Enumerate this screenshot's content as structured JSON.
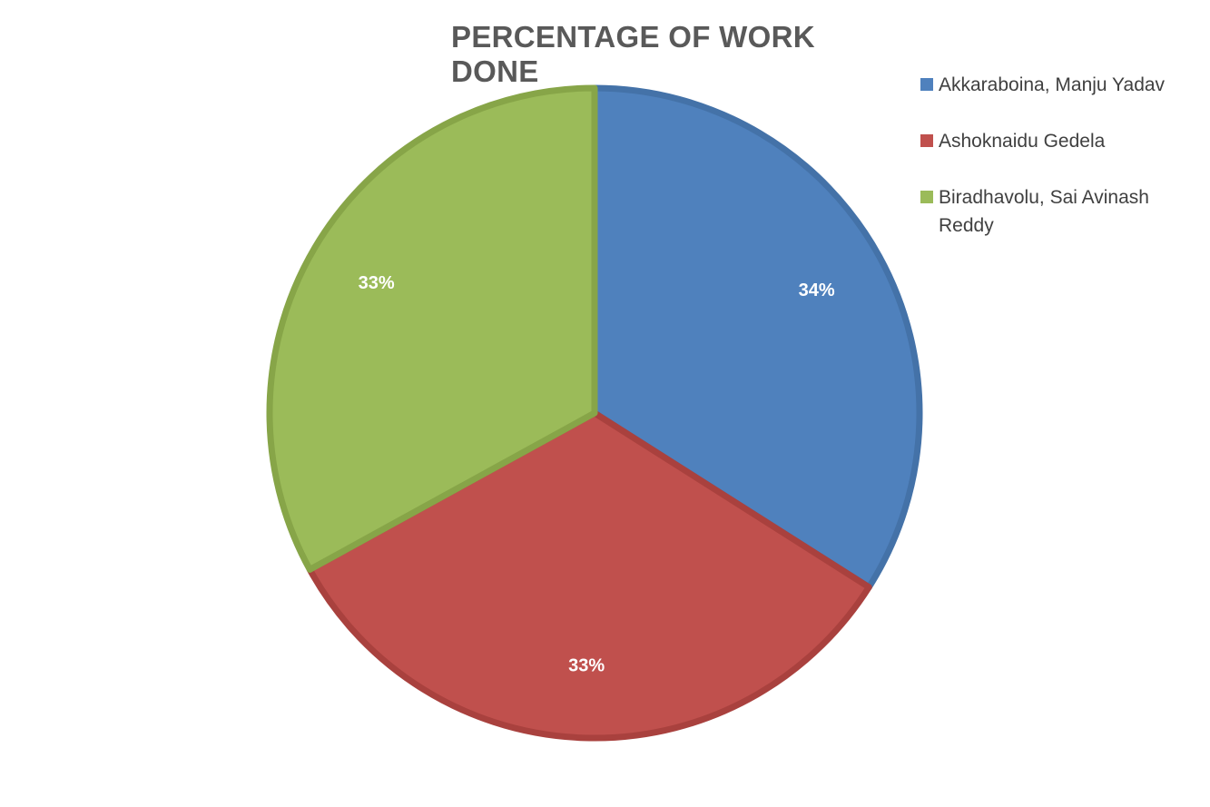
{
  "chart_data": {
    "type": "pie",
    "title": "PERCENTAGE OF WORK DONE",
    "legend_position": "right",
    "start_angle_deg": 0,
    "direction": "clockwise",
    "slices": [
      {
        "label": "Akkaraboina, Manju Yadav",
        "value": 34,
        "display": "34%",
        "color": "#4F81BD",
        "edge": "#4472A8"
      },
      {
        "label": "Ashoknaidu Gedela",
        "value": 33,
        "display": "33%",
        "color": "#C0504D",
        "edge": "#A9413E"
      },
      {
        "label": "Biradhavolu, Sai Avinash Reddy",
        "value": 33,
        "display": "33%",
        "color": "#9BBB59",
        "edge": "#87A548"
      }
    ]
  }
}
